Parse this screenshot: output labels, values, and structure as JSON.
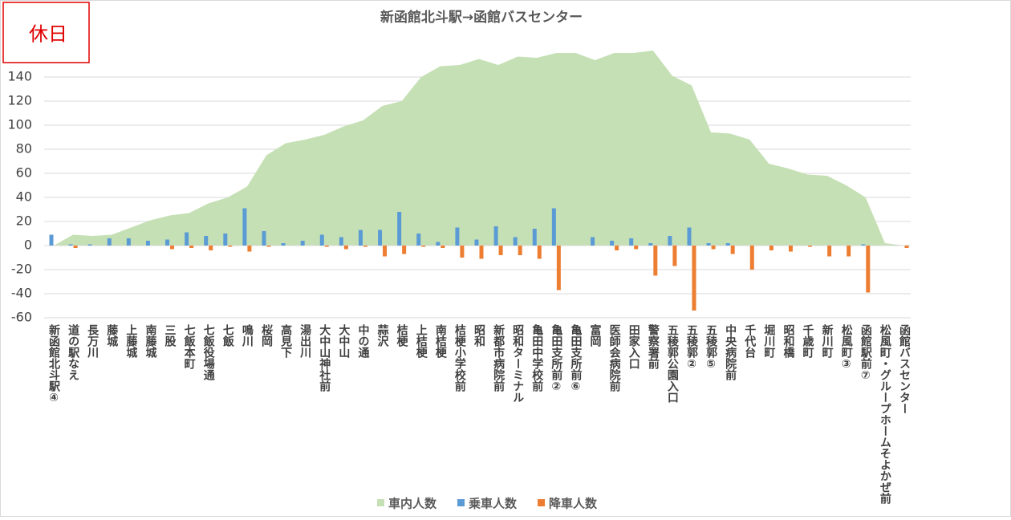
{
  "chart_data": {
    "type": "bar",
    "title": "新函館北斗駅→函館バスセンター",
    "badge": "休日",
    "categories": [
      "新函館北斗駅④",
      "道の駅なえ",
      "長万川",
      "藤城",
      "上藤城",
      "南藤城",
      "三股",
      "七飯本町",
      "七飯役場通",
      "七飯",
      "鳴川",
      "桜岡",
      "高見下",
      "湯出川",
      "大中山神社前",
      "大中山",
      "中の通",
      "蒜沢",
      "桔梗",
      "上桔梗",
      "南桔梗",
      "桔梗小学校前",
      "昭和",
      "新都市病院前",
      "昭和ターミナル",
      "亀田中学校前",
      "亀田支所前②",
      "亀田支所前⑥",
      "富岡",
      "医師会病院前",
      "田家入口",
      "警察署前",
      "五稜郭公園入口",
      "五稜郭②",
      "五稜郭⑤",
      "中央病院前",
      "千代台",
      "堀川町",
      "昭和橋",
      "千歳町",
      "新川町",
      "松風町③",
      "函館駅前⑦",
      "松風町・グループホームそよかぜ前",
      "函館バスセンター"
    ],
    "series": [
      {
        "name": "車内人数",
        "type": "area",
        "color": "#c5e0b4",
        "values": [
          0,
          9,
          8,
          9,
          15,
          21,
          25,
          27,
          35,
          40,
          49,
          75,
          85,
          88,
          92,
          99,
          104,
          116,
          120,
          140,
          149,
          150,
          155,
          150,
          157,
          156,
          160,
          160,
          154,
          160,
          160,
          162,
          141,
          133,
          94,
          93,
          88,
          68,
          64,
          59,
          58,
          50,
          40,
          2,
          0
        ]
      },
      {
        "name": "乗車人数",
        "type": "bar",
        "color": "#5b9bd5",
        "values": [
          9,
          1,
          1,
          6,
          6,
          4,
          5,
          11,
          8,
          10,
          31,
          12,
          2,
          4,
          9,
          7,
          13,
          13,
          28,
          10,
          3,
          15,
          5,
          16,
          7,
          14,
          31,
          0,
          7,
          4,
          6,
          2,
          8,
          15,
          2,
          2,
          0,
          0,
          0,
          0,
          0,
          0,
          1,
          0,
          0
        ]
      },
      {
        "name": "降車人数",
        "type": "bar",
        "color": "#ed7d31",
        "values": [
          0,
          -2,
          0,
          0,
          0,
          0,
          -3,
          -2,
          -4,
          -1,
          -5,
          -1,
          0,
          0,
          -1,
          -3,
          -1,
          -9,
          -7,
          -1,
          -2,
          -10,
          -11,
          -8,
          -8,
          -11,
          -37,
          0,
          0,
          -4,
          -3,
          -25,
          -17,
          -54,
          -3,
          -7,
          -20,
          -4,
          -5,
          -1,
          -9,
          -9,
          -39,
          0,
          -2
        ]
      }
    ],
    "ylim": [
      -60,
      160
    ],
    "yticks": [
      -60,
      -40,
      -20,
      0,
      20,
      40,
      60,
      80,
      100,
      120,
      140
    ],
    "grid": true
  }
}
